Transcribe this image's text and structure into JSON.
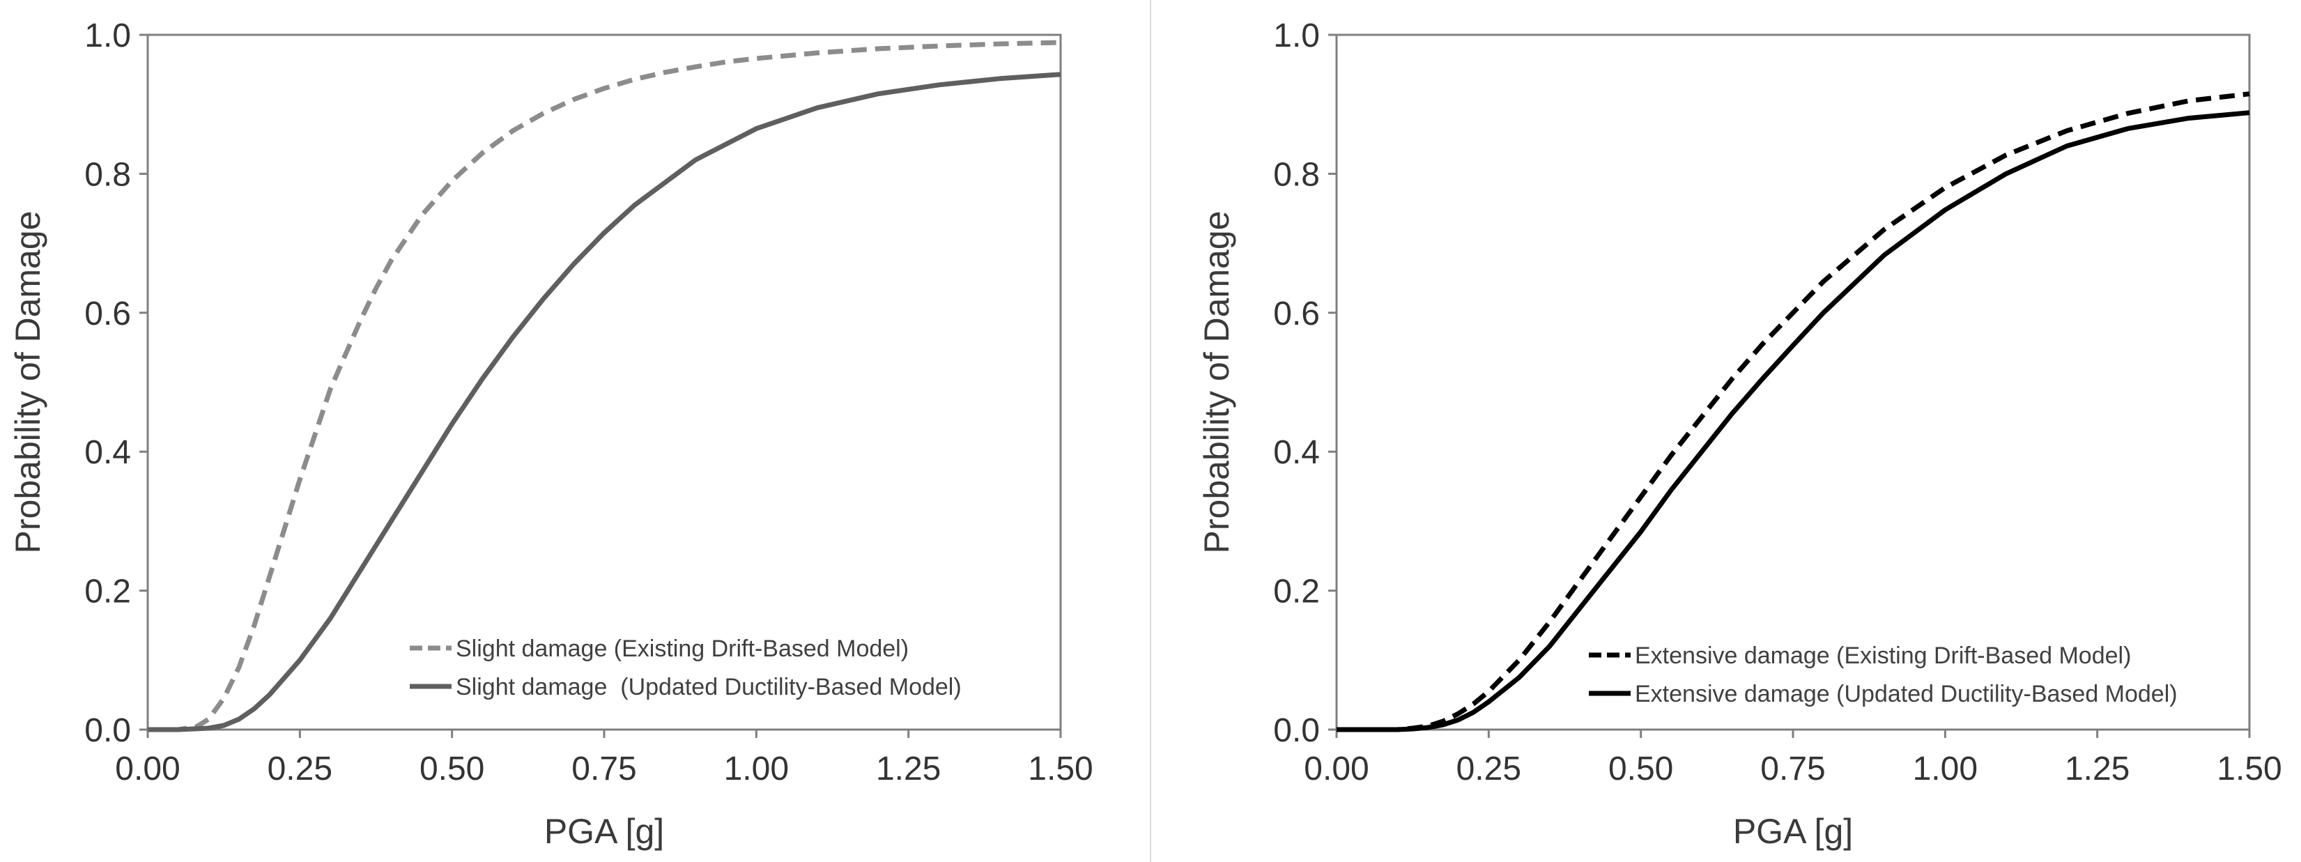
{
  "colors": {
    "background": "#ffffff",
    "axis": "#7f7f7f",
    "text": "#333333",
    "divider": "#dcdcdc"
  },
  "chart_data": [
    {
      "type": "line",
      "title": "",
      "xlabel": "PGA [g]",
      "ylabel": "Probability of Damage",
      "xlim": [
        0,
        1.5
      ],
      "ylim": [
        0,
        1.0
      ],
      "xticks": [
        0,
        0.25,
        0.5,
        0.75,
        1.0,
        1.25,
        1.5
      ],
      "xtick_labels": [
        "0.00",
        "0.25",
        "0.50",
        "0.75",
        "1.00",
        "1.25",
        "1.50"
      ],
      "yticks": [
        0,
        0.2,
        0.4,
        0.6,
        0.8,
        1.0
      ],
      "ytick_labels": [
        "0.0",
        "0.2",
        "0.4",
        "0.6",
        "0.8",
        "1.0"
      ],
      "grid": false,
      "legend_position": "bottom-right",
      "series": [
        {
          "name": "Slight damage (Existing Drift-Based Model)",
          "style": "dashed",
          "color": "#8c8c8c",
          "x": [
            0.0,
            0.05,
            0.08,
            0.1,
            0.125,
            0.15,
            0.175,
            0.2,
            0.225,
            0.25,
            0.275,
            0.3,
            0.325,
            0.35,
            0.375,
            0.4,
            0.45,
            0.5,
            0.55,
            0.6,
            0.65,
            0.7,
            0.75,
            0.8,
            0.85,
            0.9,
            0.95,
            1.0,
            1.1,
            1.2,
            1.3,
            1.4,
            1.5
          ],
          "y": [
            0.0,
            0.0,
            0.004,
            0.015,
            0.045,
            0.09,
            0.15,
            0.22,
            0.29,
            0.36,
            0.425,
            0.49,
            0.54,
            0.59,
            0.635,
            0.675,
            0.74,
            0.79,
            0.83,
            0.862,
            0.887,
            0.907,
            0.923,
            0.936,
            0.946,
            0.954,
            0.961,
            0.966,
            0.974,
            0.98,
            0.984,
            0.987,
            0.989
          ]
        },
        {
          "name": "Slight damage  (Updated Ductility-Based Model)",
          "style": "solid",
          "color": "#5f5f5f",
          "x": [
            0.0,
            0.05,
            0.1,
            0.125,
            0.15,
            0.175,
            0.2,
            0.25,
            0.3,
            0.35,
            0.4,
            0.45,
            0.5,
            0.55,
            0.6,
            0.65,
            0.7,
            0.75,
            0.8,
            0.9,
            1.0,
            1.1,
            1.2,
            1.3,
            1.4,
            1.5
          ],
          "y": [
            0.0,
            0.0,
            0.002,
            0.006,
            0.015,
            0.03,
            0.05,
            0.1,
            0.16,
            0.23,
            0.3,
            0.37,
            0.44,
            0.505,
            0.565,
            0.62,
            0.67,
            0.715,
            0.755,
            0.82,
            0.865,
            0.895,
            0.915,
            0.928,
            0.937,
            0.943
          ]
        }
      ],
      "legend": {
        "entries": [
          "Slight damage (Existing Drift-Based Model)",
          "Slight damage  (Updated Ductility-Based Model)"
        ]
      }
    },
    {
      "type": "line",
      "title": "",
      "xlabel": "PGA [g]",
      "ylabel": "Probability of Damage",
      "xlim": [
        0,
        1.5
      ],
      "ylim": [
        0,
        1.0
      ],
      "xticks": [
        0,
        0.25,
        0.5,
        0.75,
        1.0,
        1.25,
        1.5
      ],
      "xtick_labels": [
        "0.00",
        "0.25",
        "0.50",
        "0.75",
        "1.00",
        "1.25",
        "1.50"
      ],
      "yticks": [
        0,
        0.2,
        0.4,
        0.6,
        0.8,
        1.0
      ],
      "ytick_labels": [
        "0.0",
        "0.2",
        "0.4",
        "0.6",
        "0.8",
        "1.0"
      ],
      "grid": false,
      "legend_position": "bottom-right",
      "series": [
        {
          "name": "Extensive damage (Existing Drift-Based Model)",
          "style": "dashed",
          "color": "#000000",
          "x": [
            0.0,
            0.1,
            0.125,
            0.15,
            0.175,
            0.2,
            0.225,
            0.25,
            0.3,
            0.35,
            0.4,
            0.45,
            0.5,
            0.55,
            0.6,
            0.65,
            0.7,
            0.75,
            0.8,
            0.9,
            1.0,
            1.1,
            1.2,
            1.3,
            1.4,
            1.5
          ],
          "y": [
            0.0,
            0.0,
            0.002,
            0.005,
            0.012,
            0.023,
            0.037,
            0.055,
            0.1,
            0.155,
            0.215,
            0.275,
            0.335,
            0.395,
            0.45,
            0.505,
            0.555,
            0.6,
            0.645,
            0.72,
            0.78,
            0.827,
            0.862,
            0.887,
            0.905,
            0.915
          ]
        },
        {
          "name": "Extensive damage (Updated Ductility-Based Model)",
          "style": "solid",
          "color": "#000000",
          "x": [
            0.0,
            0.1,
            0.125,
            0.15,
            0.175,
            0.2,
            0.225,
            0.25,
            0.3,
            0.35,
            0.4,
            0.45,
            0.5,
            0.55,
            0.6,
            0.65,
            0.7,
            0.75,
            0.8,
            0.9,
            1.0,
            1.1,
            1.2,
            1.3,
            1.4,
            1.5
          ],
          "y": [
            0.0,
            0.0,
            0.001,
            0.003,
            0.007,
            0.014,
            0.025,
            0.04,
            0.075,
            0.12,
            0.175,
            0.23,
            0.285,
            0.345,
            0.4,
            0.455,
            0.505,
            0.553,
            0.6,
            0.683,
            0.748,
            0.8,
            0.84,
            0.865,
            0.88,
            0.888
          ]
        }
      ],
      "legend": {
        "entries": [
          "Extensive damage (Existing Drift-Based Model)",
          "Extensive damage (Updated Ductility-Based Model)"
        ]
      }
    }
  ]
}
